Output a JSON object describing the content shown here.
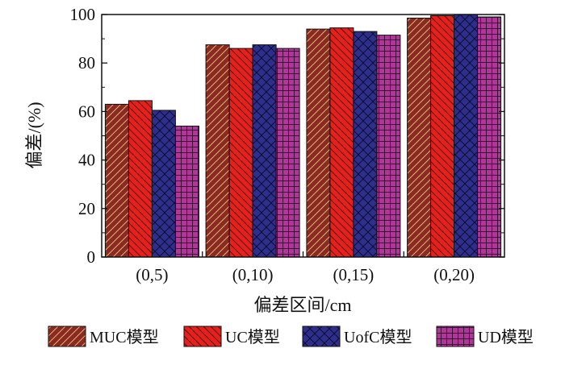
{
  "chart_data": {
    "type": "bar",
    "title": "",
    "xlabel": "偏差区间/cm",
    "ylabel": "偏差/(%)",
    "ylim": [
      0,
      100
    ],
    "yticks": [
      0,
      20,
      40,
      60,
      80,
      100
    ],
    "categories": [
      "(0,5)",
      "(0,10)",
      "(0,15)",
      "(0,20)"
    ],
    "series": [
      {
        "name": "MUC模型",
        "values": [
          63,
          87.5,
          94,
          98.5
        ],
        "color": "#8B2A22",
        "pattern": "diagonal-forward"
      },
      {
        "name": "UC模型",
        "values": [
          64.5,
          86,
          94.5,
          99.5
        ],
        "color": "#E8201C",
        "pattern": "diagonal-backward"
      },
      {
        "name": "UofC模型",
        "values": [
          60.5,
          87.5,
          93,
          100
        ],
        "color": "#2E2E8C",
        "pattern": "crosshatch"
      },
      {
        "name": "UD模型",
        "values": [
          54,
          86,
          91.5,
          99
        ],
        "color": "#B0369A",
        "pattern": "grid"
      }
    ],
    "legend_position": "bottom",
    "grid": false
  }
}
